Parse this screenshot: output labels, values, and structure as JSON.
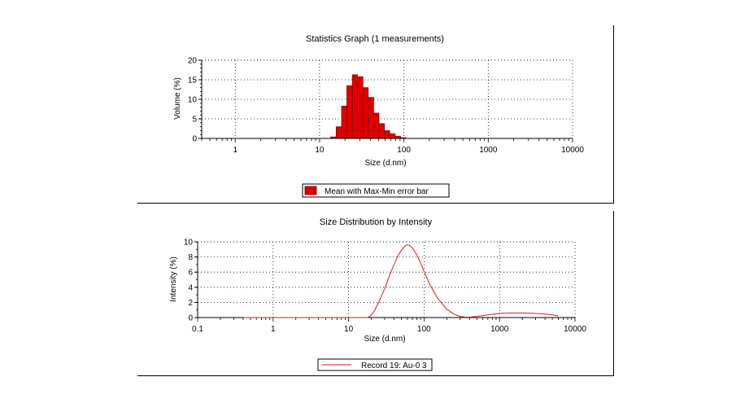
{
  "colors": {
    "bars": "#dd0000",
    "bar_edge": "#660000",
    "line": "#cc2222",
    "axis": "#000000",
    "grid": "#000000"
  },
  "chart_data": [
    {
      "type": "bar",
      "title": "Statistics Graph (1 measurements)",
      "xlabel": "Size (d.nm)",
      "ylabel": "Volume (%)",
      "xscale": "log",
      "xlim": [
        0.4,
        10000
      ],
      "ylim": [
        0,
        20
      ],
      "xticks": [
        "1",
        "10",
        "100",
        "1000",
        "10000"
      ],
      "xtick_values": [
        1,
        10,
        100,
        1000,
        10000
      ],
      "yticks": [
        "0",
        "5",
        "10",
        "15",
        "20"
      ],
      "ytick_values": [
        0,
        5,
        10,
        15,
        20
      ],
      "grid": true,
      "legend": {
        "position": "bottom-center",
        "entries": [
          "Mean with Max-Min error bar"
        ]
      },
      "bins": [
        {
          "x0": 13.5,
          "x1": 15.7,
          "y": 0.4
        },
        {
          "x0": 15.7,
          "x1": 18.2,
          "y": 3.0
        },
        {
          "x0": 18.2,
          "x1": 21.0,
          "y": 8.3
        },
        {
          "x0": 21.0,
          "x1": 24.4,
          "y": 13.5
        },
        {
          "x0": 24.4,
          "x1": 28.2,
          "y": 16.3
        },
        {
          "x0": 28.2,
          "x1": 32.7,
          "y": 15.8
        },
        {
          "x0": 32.7,
          "x1": 37.8,
          "y": 13.0
        },
        {
          "x0": 37.8,
          "x1": 43.8,
          "y": 10.5
        },
        {
          "x0": 43.8,
          "x1": 50.7,
          "y": 6.5
        },
        {
          "x0": 50.7,
          "x1": 58.8,
          "y": 3.8
        },
        {
          "x0": 58.8,
          "x1": 68.1,
          "y": 2.0
        },
        {
          "x0": 68.1,
          "x1": 78.8,
          "y": 1.2
        },
        {
          "x0": 78.8,
          "x1": 91.3,
          "y": 0.6
        },
        {
          "x0": 91.3,
          "x1": 105.7,
          "y": 0.2
        }
      ]
    },
    {
      "type": "line",
      "title": "Size Distribution by Intensity",
      "xlabel": "Size (d.nm)",
      "ylabel": "Intensity (%)",
      "xscale": "log",
      "xlim": [
        0.1,
        10000
      ],
      "ylim": [
        0,
        10
      ],
      "xticks": [
        "0.1",
        "1",
        "10",
        "100",
        "1000",
        "10000"
      ],
      "xtick_values": [
        0.1,
        1,
        10,
        100,
        1000,
        10000
      ],
      "yticks": [
        "0",
        "2",
        "4",
        "6",
        "8",
        "10"
      ],
      "ytick_values": [
        0,
        2,
        4,
        6,
        8,
        10
      ],
      "grid": true,
      "legend": {
        "position": "bottom-center",
        "entries": [
          "Record 19: Au-0 3"
        ]
      },
      "series": [
        {
          "name": "Record 19: Au-0 3",
          "x": [
            0.4,
            1,
            10,
            18,
            20,
            22,
            25,
            30,
            35,
            40,
            45,
            50,
            55,
            60,
            65,
            70,
            80,
            90,
            100,
            120,
            150,
            200,
            250,
            300,
            350,
            400,
            500,
            700,
            1000,
            1500,
            2000,
            3000,
            4000,
            5000,
            6000
          ],
          "y": [
            0,
            0,
            0,
            0,
            0.3,
            0.9,
            2.0,
            3.8,
            5.6,
            7.0,
            8.1,
            8.9,
            9.4,
            9.6,
            9.5,
            9.2,
            8.3,
            7.2,
            6.1,
            4.3,
            2.6,
            1.1,
            0.45,
            0.15,
            0.05,
            0.05,
            0.15,
            0.35,
            0.55,
            0.6,
            0.6,
            0.55,
            0.45,
            0.35,
            0.2
          ]
        }
      ]
    }
  ]
}
